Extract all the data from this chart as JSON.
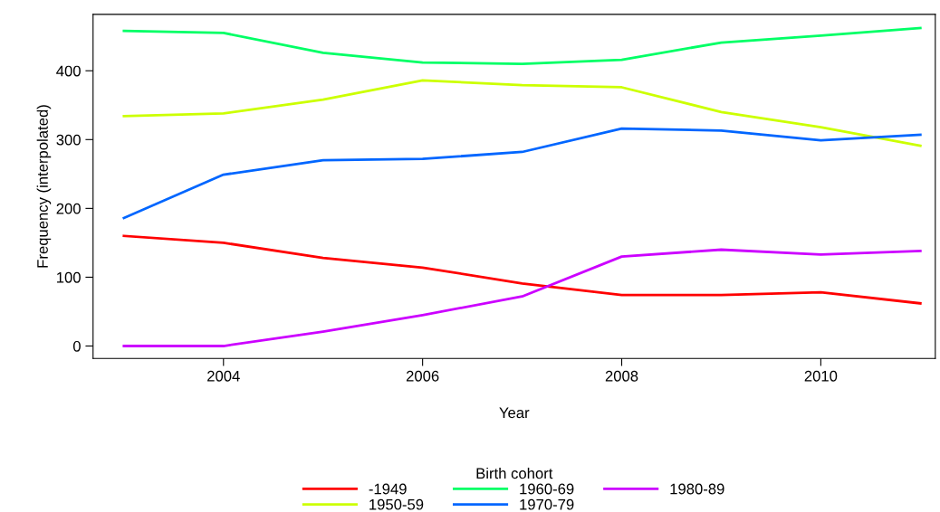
{
  "chart_data": {
    "type": "line",
    "xlabel": "Year",
    "ylabel": "Frequency (interpolated)",
    "legend_title": "Birth cohort",
    "legend": "bottom",
    "grid": false,
    "x": [
      2003,
      2004,
      2005,
      2006,
      2007,
      2008,
      2009,
      2010,
      2011
    ],
    "xlim": [
      2002.69,
      2011.15
    ],
    "xticks": [
      2004,
      2006,
      2008,
      2010
    ],
    "ylim": [
      -18,
      482
    ],
    "yticks": [
      0,
      100,
      200,
      300,
      400
    ],
    "series": [
      {
        "name": "-1949",
        "color": "#ff0000",
        "values": [
          160,
          150,
          128,
          114,
          91,
          74,
          74,
          78,
          62
        ]
      },
      {
        "name": "1950-59",
        "color": "#ccff00",
        "values": [
          334,
          338,
          358,
          386,
          379,
          376,
          340,
          318,
          291
        ]
      },
      {
        "name": "1960-69",
        "color": "#00ff66",
        "values": [
          458,
          455,
          426,
          412,
          410,
          416,
          441,
          451,
          462
        ]
      },
      {
        "name": "1970-79",
        "color": "#0066ff",
        "values": [
          186,
          249,
          270,
          272,
          282,
          316,
          313,
          299,
          307
        ]
      },
      {
        "name": "1980-89",
        "color": "#cc00ff",
        "values": [
          0,
          0,
          21,
          45,
          72,
          130,
          140,
          133,
          138
        ]
      }
    ]
  }
}
